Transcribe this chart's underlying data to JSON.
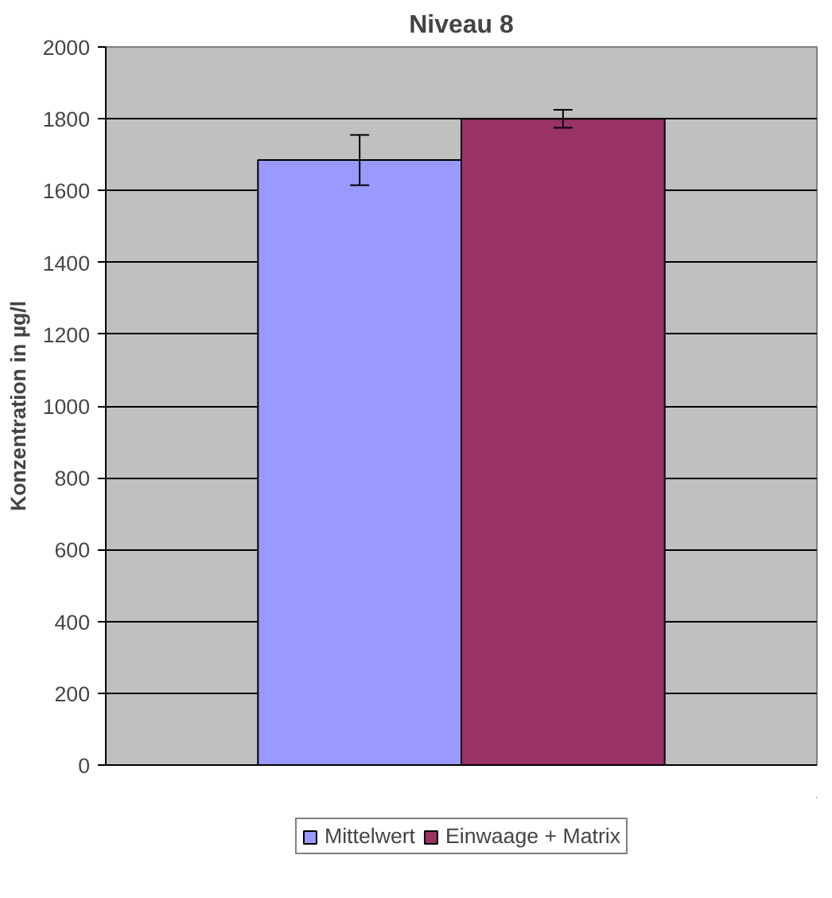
{
  "chart_data": {
    "type": "bar",
    "title": "Niveau 8",
    "ylabel": "Konzentration in µg/l",
    "categories": [
      null
    ],
    "series": [
      {
        "name": "Mittelwert",
        "color": "#9999ff",
        "values": [
          1685
        ],
        "errors": [
          70
        ]
      },
      {
        "name": "Einwaage + Matrix",
        "color": "#993366",
        "values": [
          1800
        ],
        "errors": [
          25
        ]
      }
    ],
    "ylim": [
      0,
      2000
    ],
    "yticks": [
      0,
      200,
      400,
      600,
      800,
      1000,
      1200,
      1400,
      1600,
      1800,
      2000
    ],
    "grid": "y",
    "legend": "bottom"
  }
}
